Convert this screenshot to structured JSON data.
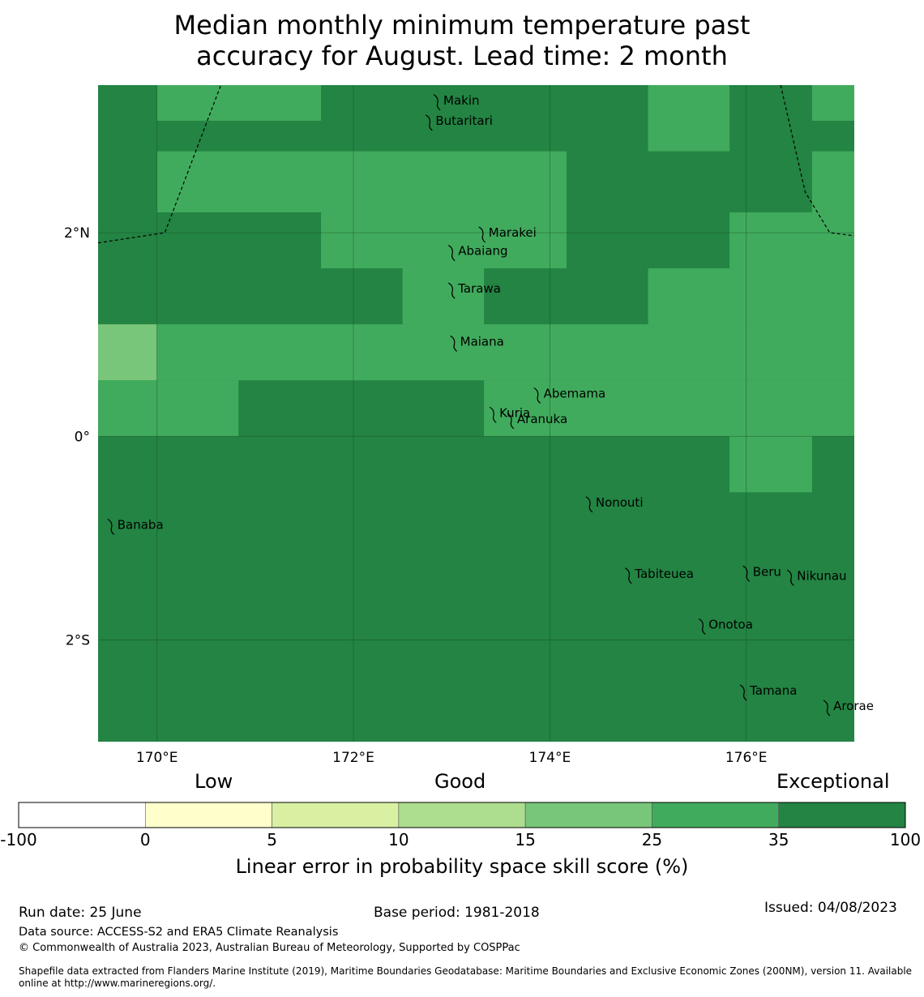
{
  "title": {
    "line1": "Median monthly minimum temperature past",
    "line2": "accuracy for August. Lead time: 2 month"
  },
  "map": {
    "lon_range": [
      169.4,
      177.1
    ],
    "lat_range": [
      -3.0,
      3.45
    ],
    "lon_ticks": [
      {
        "value": 170,
        "label": "170°E"
      },
      {
        "value": 172,
        "label": "172°E"
      },
      {
        "value": 174,
        "label": "174°E"
      },
      {
        "value": 176,
        "label": "176°E"
      }
    ],
    "lat_ticks": [
      {
        "value": 2,
        "label": "2°N"
      },
      {
        "value": 0,
        "label": "0°"
      },
      {
        "value": -2,
        "label": "2°S"
      }
    ],
    "grid": true,
    "background_color": "#238443",
    "cell_colors": {
      "35": "#41ab5d",
      "25": "#78c679"
    },
    "cells": [
      {
        "lon": [
          170.0,
          171.67
        ],
        "lat": [
          3.1,
          3.45
        ],
        "class": "35"
      },
      {
        "lon": [
          175.0,
          175.83
        ],
        "lat": [
          2.8,
          3.45
        ],
        "class": "35"
      },
      {
        "lon": [
          176.67,
          177.1
        ],
        "lat": [
          3.1,
          3.45
        ],
        "class": "35"
      },
      {
        "lon": [
          170.0,
          174.17
        ],
        "lat": [
          2.2,
          2.8
        ],
        "class": "35"
      },
      {
        "lon": [
          176.67,
          177.1
        ],
        "lat": [
          2.2,
          2.8
        ],
        "class": "35"
      },
      {
        "lon": [
          171.67,
          174.17
        ],
        "lat": [
          1.65,
          2.2
        ],
        "class": "35"
      },
      {
        "lon": [
          175.83,
          177.1
        ],
        "lat": [
          1.65,
          2.2
        ],
        "class": "35"
      },
      {
        "lon": [
          172.5,
          173.33
        ],
        "lat": [
          1.1,
          1.65
        ],
        "class": "35"
      },
      {
        "lon": [
          175.0,
          177.1
        ],
        "lat": [
          1.1,
          1.65
        ],
        "class": "35"
      },
      {
        "lon": [
          169.4,
          170.0
        ],
        "lat": [
          0.55,
          1.1
        ],
        "class": "25"
      },
      {
        "lon": [
          170.0,
          177.1
        ],
        "lat": [
          0.55,
          1.1
        ],
        "class": "35"
      },
      {
        "lon": [
          169.4,
          170.83
        ],
        "lat": [
          0.0,
          0.55
        ],
        "class": "35"
      },
      {
        "lon": [
          173.33,
          177.1
        ],
        "lat": [
          0.0,
          0.55
        ],
        "class": "35"
      },
      {
        "lon": [
          175.83,
          176.67
        ],
        "lat": [
          -0.55,
          0.0
        ],
        "class": "35"
      }
    ],
    "eez_boundaries": [
      [
        [
          169.4,
          1.9
        ],
        [
          170.08,
          2.0
        ],
        [
          170.65,
          3.45
        ]
      ],
      [
        [
          176.35,
          3.45
        ],
        [
          176.6,
          2.4
        ],
        [
          176.85,
          2.0
        ],
        [
          177.1,
          1.97
        ]
      ]
    ],
    "islands": [
      {
        "name": "Makin",
        "lon": 172.85,
        "lat": 3.3
      },
      {
        "name": "Butaritari",
        "lon": 172.77,
        "lat": 3.1
      },
      {
        "name": "Marakei",
        "lon": 173.31,
        "lat": 2.0
      },
      {
        "name": "Abaiang",
        "lon": 173.0,
        "lat": 1.82
      },
      {
        "name": "Tarawa",
        "lon": 173.0,
        "lat": 1.45
      },
      {
        "name": "Maiana",
        "lon": 173.02,
        "lat": 0.93
      },
      {
        "name": "Abemama",
        "lon": 173.87,
        "lat": 0.42
      },
      {
        "name": "Kuria",
        "lon": 173.42,
        "lat": 0.23
      },
      {
        "name": "Aranuka",
        "lon": 173.6,
        "lat": 0.17
      },
      {
        "name": "Banaba",
        "lon": 169.53,
        "lat": -0.87
      },
      {
        "name": "Nonouti",
        "lon": 174.4,
        "lat": -0.65
      },
      {
        "name": "Tabiteuea",
        "lon": 174.8,
        "lat": -1.35
      },
      {
        "name": "Beru",
        "lon": 176.0,
        "lat": -1.33
      },
      {
        "name": "Nikunau",
        "lon": 176.45,
        "lat": -1.37
      },
      {
        "name": "Onotoa",
        "lon": 175.55,
        "lat": -1.85
      },
      {
        "name": "Tamana",
        "lon": 175.97,
        "lat": -2.5
      },
      {
        "name": "Arorae",
        "lon": 176.82,
        "lat": -2.65
      }
    ]
  },
  "colorbar": {
    "headings": {
      "low": "Low",
      "good": "Good",
      "exceptional": "Exceptional"
    },
    "bins": [
      {
        "from": -100,
        "to": 0,
        "color": "#ffffff"
      },
      {
        "from": 0,
        "to": 5,
        "color": "#ffffcc"
      },
      {
        "from": 5,
        "to": 10,
        "color": "#d9f0a3"
      },
      {
        "from": 10,
        "to": 15,
        "color": "#addd8e"
      },
      {
        "from": 15,
        "to": 25,
        "color": "#78c679"
      },
      {
        "from": 25,
        "to": 35,
        "color": "#41ab5d"
      },
      {
        "from": 35,
        "to": 100,
        "color": "#238443"
      }
    ],
    "tick_labels": [
      "-100",
      "0",
      "5",
      "10",
      "15",
      "25",
      "35",
      "100"
    ],
    "label": "Linear error in probability space skill score (%)"
  },
  "footer": {
    "run_date": "Run date: 25 June",
    "base_period": "Base period: 1981-2018",
    "issued": "Issued: 04/08/2023",
    "data_source": "Data source: ACCESS-S2 and ERA5 Climate Reanalysis",
    "copyright": "© Commonwealth of Australia 2023, Australian Bureau of Meteorology, Supported by COSPPac",
    "shapefile": "Shapefile data extracted from Flanders Marine Institute (2019), Maritime Boundaries Geodatabase: Maritime Boundaries and Exclusive Economic Zones (200NM), version 11. Available online at http://www.marineregions.org/."
  }
}
